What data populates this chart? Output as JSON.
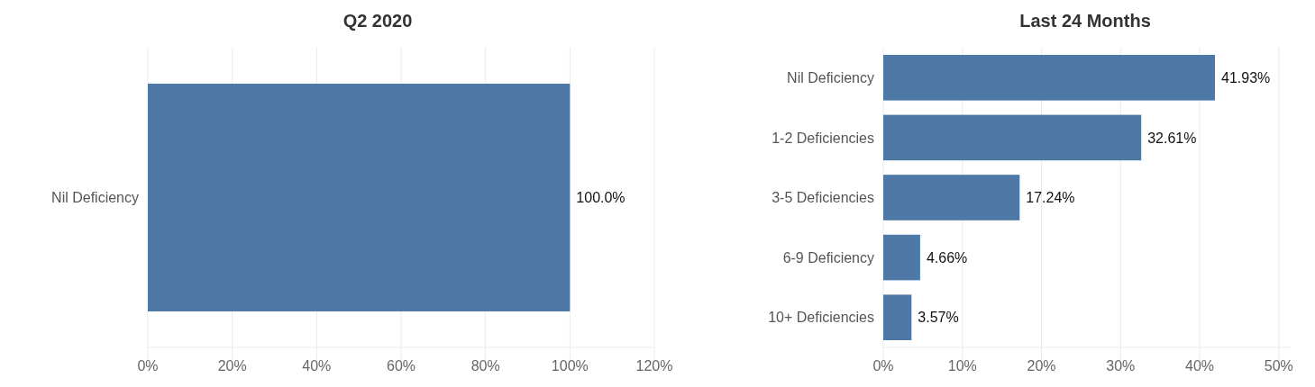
{
  "chart_data": [
    {
      "type": "bar",
      "title": "Q2 2020",
      "orientation": "horizontal",
      "categories": [
        "Nil Deficiency"
      ],
      "values": [
        100
      ],
      "value_labels": [
        "100.0%"
      ],
      "color": "#4e79a7",
      "xlim": [
        0,
        120
      ],
      "xticks": [
        {
          "value": 0,
          "label": "0%"
        },
        {
          "value": 20,
          "label": "20%"
        },
        {
          "value": 40,
          "label": "40%"
        },
        {
          "value": 60,
          "label": "60%"
        },
        {
          "value": 80,
          "label": "80%"
        },
        {
          "value": 100,
          "label": "100%"
        },
        {
          "value": 120,
          "label": "120%"
        }
      ],
      "grid": "x"
    },
    {
      "type": "bar",
      "title": "Last 24 Months",
      "orientation": "horizontal",
      "categories": [
        "Nil Deficiency",
        "1-2  Deficiencies",
        "3-5  Deficiencies",
        "6-9 Deficiency",
        "10+ Deficiencies"
      ],
      "values": [
        41.93,
        32.61,
        17.24,
        4.66,
        3.57
      ],
      "value_labels": [
        "41.93%",
        "32.61%",
        "17.24%",
        "4.66%",
        "3.57%"
      ],
      "color": "#4e79a7",
      "xlim": [
        0,
        51.5
      ],
      "xticks": [
        {
          "value": 0,
          "label": "0%"
        },
        {
          "value": 10,
          "label": "10%"
        },
        {
          "value": 20,
          "label": "20%"
        },
        {
          "value": 30,
          "label": "30%"
        },
        {
          "value": 40,
          "label": "40%"
        },
        {
          "value": 50,
          "label": "50%"
        }
      ],
      "grid": "x"
    }
  ]
}
